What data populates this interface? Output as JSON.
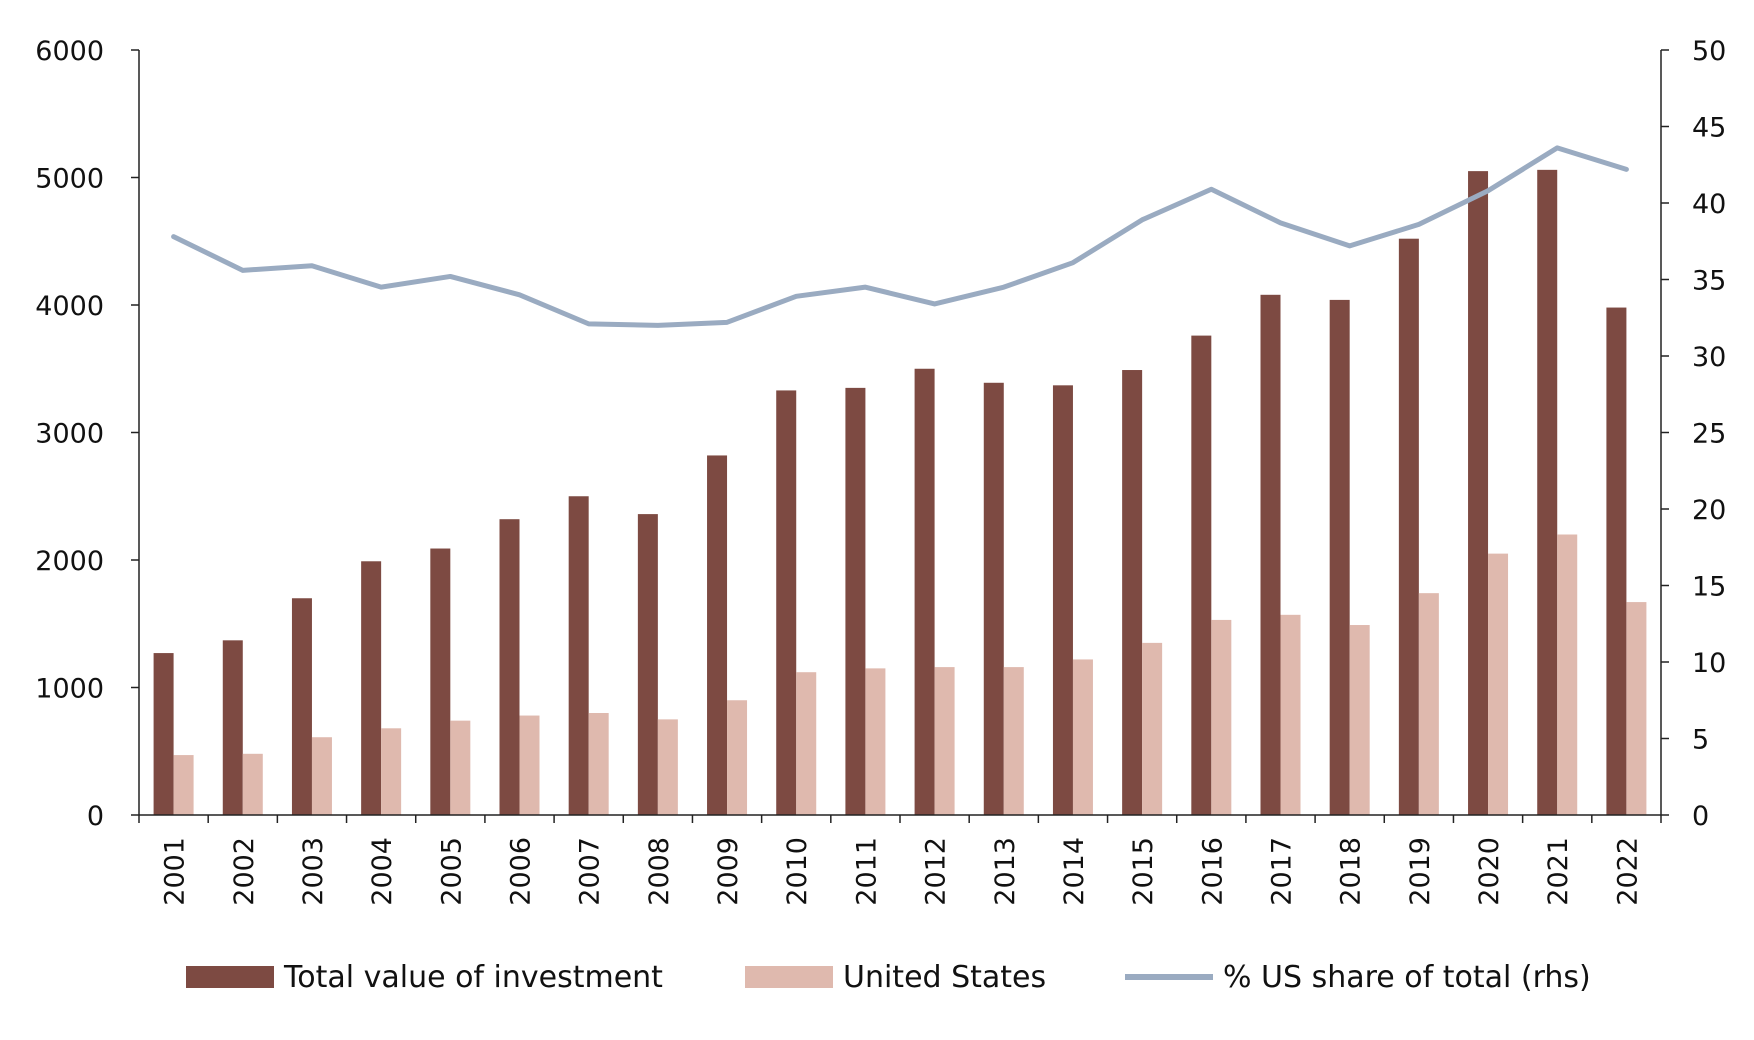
{
  "chart_data": {
    "type": "bar",
    "categories": [
      "2001",
      "2002",
      "2003",
      "2004",
      "2005",
      "2006",
      "2007",
      "2008",
      "2009",
      "2010",
      "2011",
      "2012",
      "2013",
      "2014",
      "2015",
      "2016",
      "2017",
      "2018",
      "2019",
      "2020",
      "2021",
      "2022"
    ],
    "series": [
      {
        "name": "Total value of investment",
        "type": "bar",
        "axis": "left",
        "color": "#7d4a42",
        "values": [
          1270,
          1370,
          1700,
          1990,
          2090,
          2320,
          2500,
          2360,
          2820,
          3330,
          3350,
          3500,
          3390,
          3370,
          3490,
          3760,
          4080,
          4040,
          4520,
          5050,
          5060,
          3980
        ]
      },
      {
        "name": "United States",
        "type": "bar",
        "axis": "left",
        "color": "#dfb9ae",
        "values": [
          470,
          480,
          610,
          680,
          740,
          780,
          800,
          750,
          900,
          1120,
          1150,
          1160,
          1160,
          1220,
          1350,
          1530,
          1570,
          1490,
          1740,
          2050,
          2200,
          1670
        ]
      },
      {
        "name": "% US share of total (rhs)",
        "type": "line",
        "axis": "right",
        "color": "#9aabc1",
        "values": [
          37.8,
          35.6,
          35.9,
          34.5,
          35.2,
          34.0,
          32.1,
          32.0,
          32.2,
          33.9,
          34.5,
          33.4,
          34.5,
          36.1,
          38.9,
          40.9,
          38.7,
          37.2,
          38.6,
          40.8,
          43.6,
          42.2
        ]
      }
    ],
    "y_left": {
      "ylim": [
        0,
        6000
      ],
      "ticks": [
        0,
        1000,
        2000,
        3000,
        4000,
        5000,
        6000
      ]
    },
    "y_right": {
      "ylim": [
        0,
        50
      ],
      "ticks": [
        0,
        5,
        10,
        15,
        20,
        25,
        30,
        35,
        40,
        45,
        50
      ]
    },
    "title": "",
    "xlabel": "",
    "ylabel": "",
    "legend_position": "bottom",
    "grid": false
  }
}
